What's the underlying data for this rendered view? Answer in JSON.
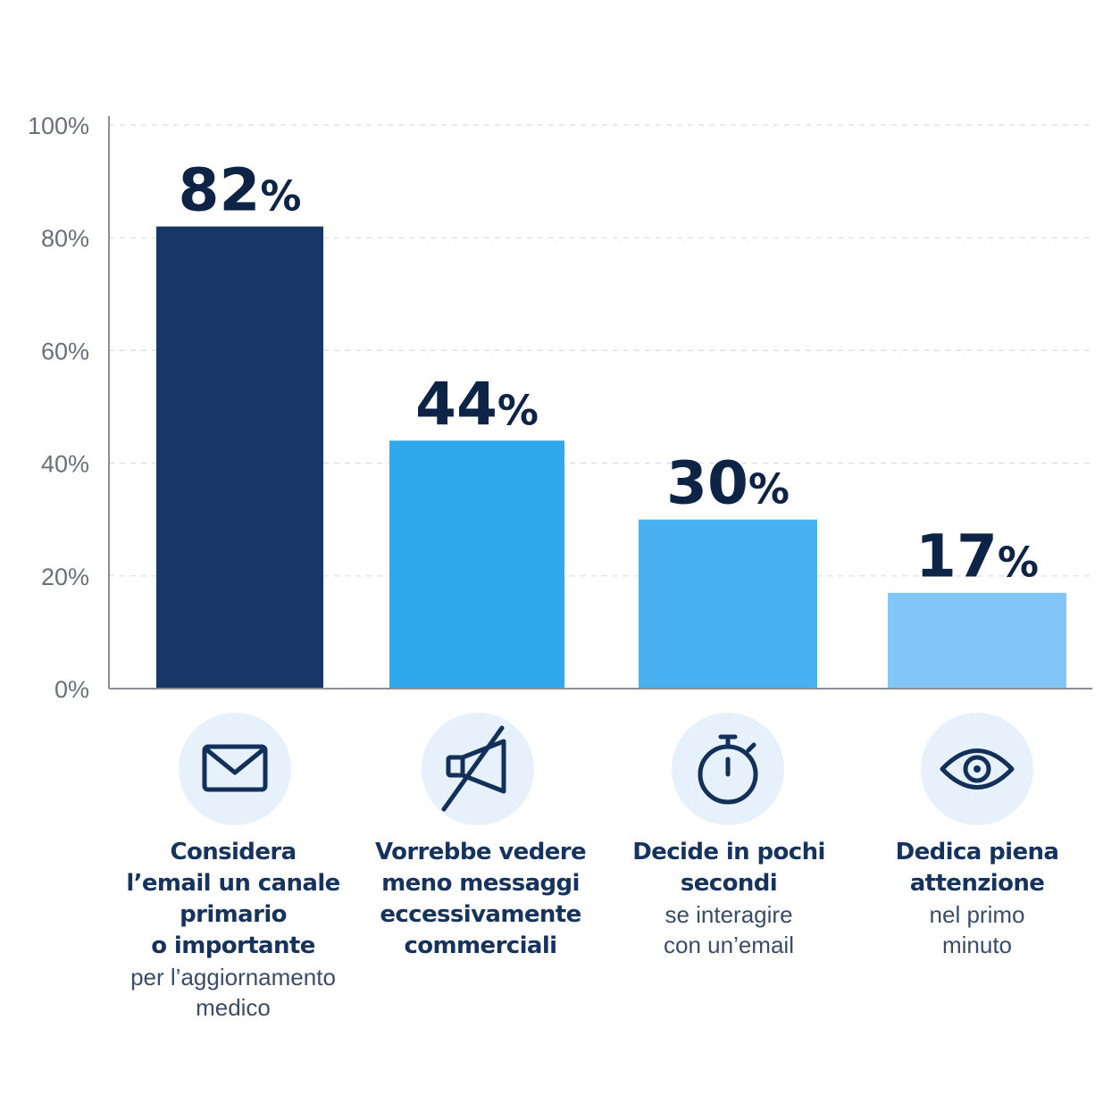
{
  "chart_data": {
    "type": "bar",
    "title": "",
    "xlabel": "",
    "ylabel": "",
    "ylim": [
      0,
      100
    ],
    "yticks": [
      0,
      20,
      40,
      60,
      80,
      100
    ],
    "ytick_suffix": "%",
    "grid": true,
    "categories": [
      {
        "bold": "Considera\nl’email un canale\nprimario\no importante",
        "sub": "per l’aggiornamento\nmedico",
        "icon": "envelope-icon"
      },
      {
        "bold": "Vorrebbe vedere\nmeno messaggi\neccessivamente\ncommerciali",
        "sub": "",
        "icon": "muted-megaphone-icon"
      },
      {
        "bold": "Decide in pochi\nsecondi",
        "sub": "se interagire\ncon un’email",
        "icon": "stopwatch-icon"
      },
      {
        "bold": "Dedica piena\nattenzione",
        "sub": "nel primo\nminuto",
        "icon": "eye-icon"
      }
    ],
    "values": [
      82,
      44,
      30,
      17
    ],
    "value_labels": [
      "82%",
      "44%",
      "30%",
      "17%"
    ],
    "bar_colors": [
      "#173766",
      "#2fa8ee",
      "#47b1f1",
      "#82c6f8"
    ]
  },
  "colors": {
    "label_dark": "#0d2446",
    "icon_stroke": "#12305a",
    "icon_bg": "#e7f1fb",
    "grid": "#d9dde3",
    "axis": "#8a8f98"
  }
}
